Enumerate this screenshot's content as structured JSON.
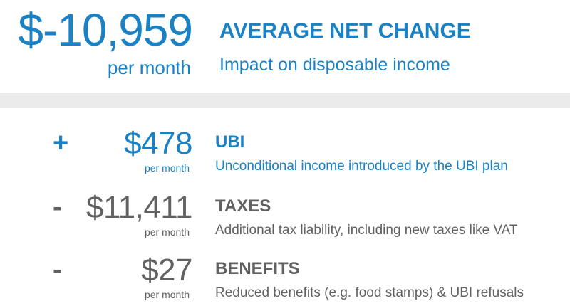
{
  "summary": {
    "amount": "$-10,959",
    "unit": "per month",
    "title": "AVERAGE NET CHANGE",
    "subtitle": "Impact on disposable income"
  },
  "items": [
    {
      "sign": "+",
      "amount": "$478",
      "unit": "per month",
      "label": "UBI",
      "description": "Unconditional income introduced by the UBI plan",
      "color": "#1a82c4"
    },
    {
      "sign": "-",
      "amount": "$11,411",
      "unit": "per month",
      "label": "TAXES",
      "description": "Additional tax liability, including new taxes like VAT",
      "color": "#616161"
    },
    {
      "sign": "-",
      "amount": "$27",
      "unit": "per month",
      "label": "BENEFITS",
      "description": "Reduced benefits (e.g. food stamps) & UBI refusals",
      "color": "#616161"
    }
  ]
}
